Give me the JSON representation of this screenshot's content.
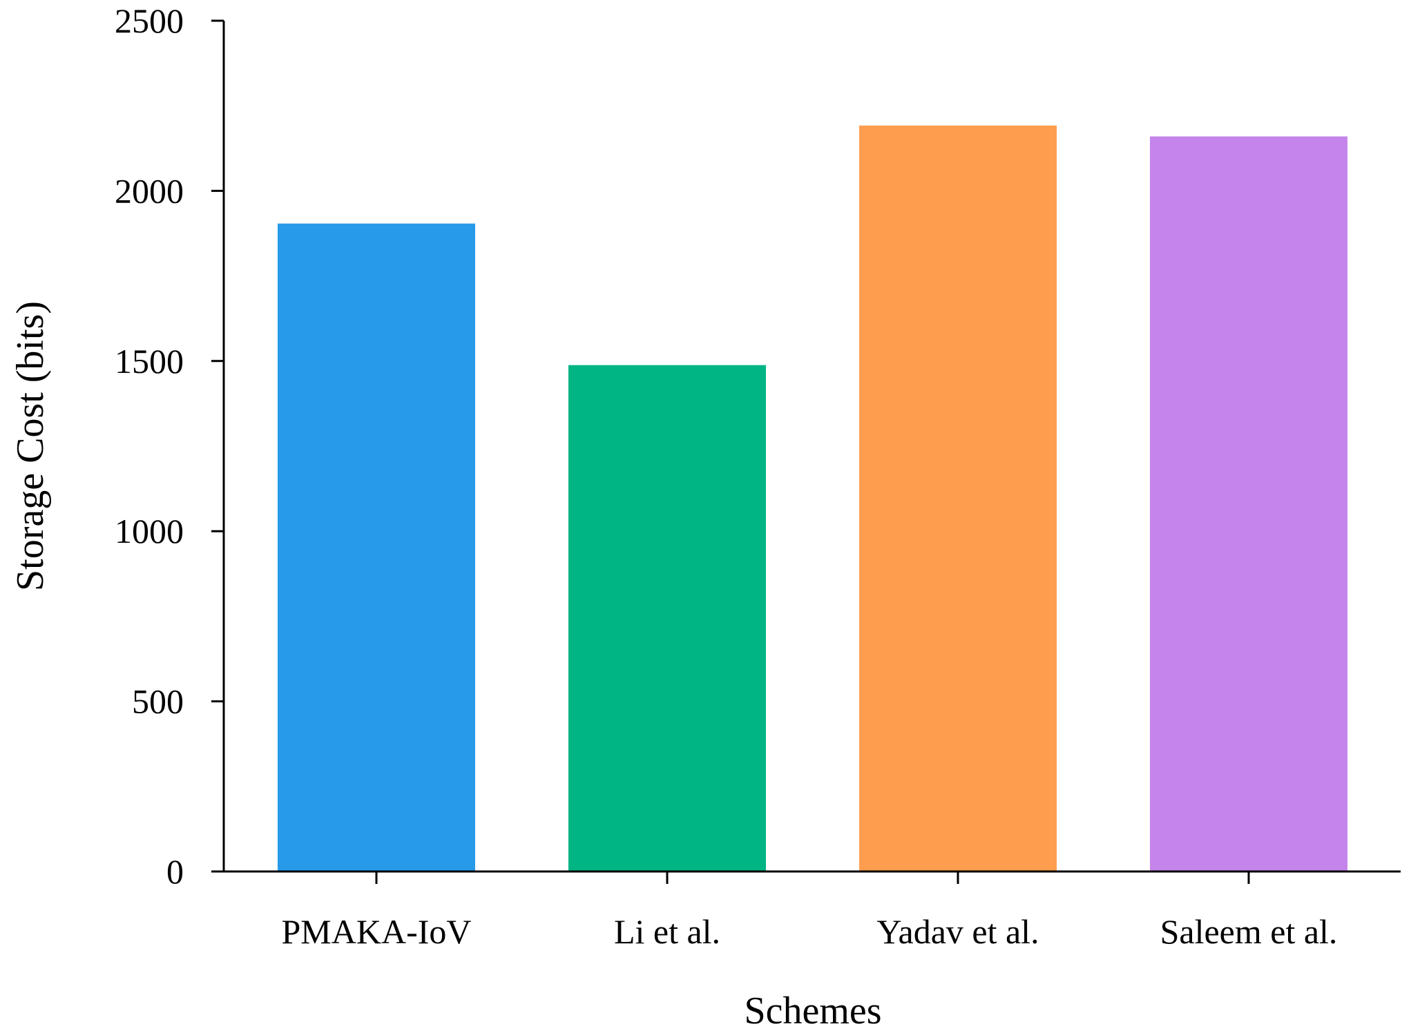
{
  "chart_data": {
    "type": "bar",
    "title": "",
    "xlabel": "Schemes",
    "ylabel": "Storage Cost (bits)",
    "categories": [
      "PMAKA-IoV",
      "Li et al.",
      "Yadav et al.",
      "Saleem et al."
    ],
    "values": [
      1904,
      1488,
      2192,
      2160
    ],
    "colors": [
      "#279be8",
      "#00b584",
      "#ff9d4e",
      "#c584ea"
    ],
    "ylim": [
      0,
      2500
    ],
    "yticks": [
      0,
      500,
      1000,
      1500,
      2000,
      2500
    ],
    "grid": false,
    "legend": "none"
  }
}
